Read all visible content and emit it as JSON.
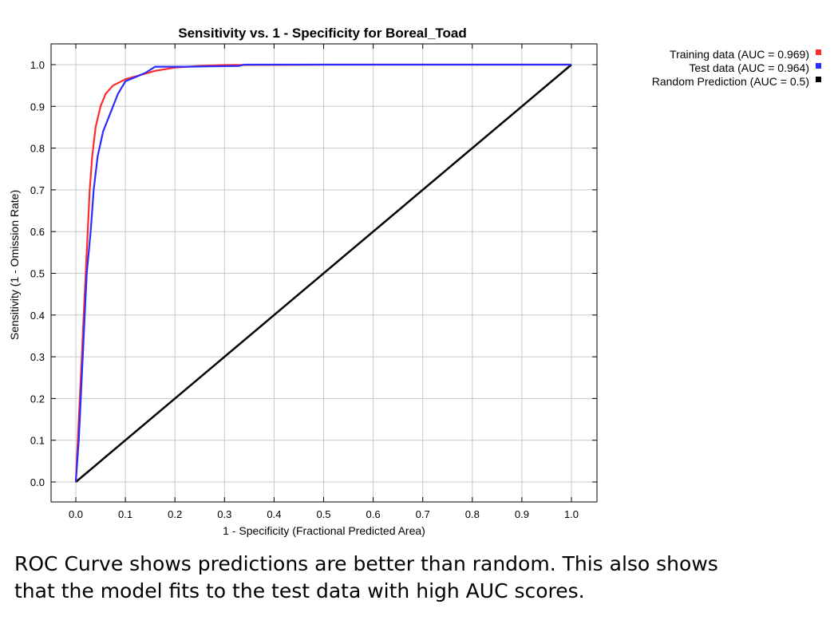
{
  "chart_data": {
    "type": "line",
    "title": "Sensitivity vs. 1 - Specificity for Boreal_Toad",
    "xlabel": "1 - Specificity  (Fractional Predicted Area)",
    "ylabel": "Sensitivity  (1 - Omission Rate)",
    "xlim": [
      0,
      1
    ],
    "ylim": [
      0,
      1
    ],
    "x_ticks": [
      "0.0",
      "0.1",
      "0.2",
      "0.3",
      "0.4",
      "0.5",
      "0.6",
      "0.7",
      "0.8",
      "0.9",
      "1.0"
    ],
    "y_ticks": [
      "0.0",
      "0.1",
      "0.2",
      "0.3",
      "0.4",
      "0.5",
      "0.6",
      "0.7",
      "0.8",
      "0.9",
      "1.0"
    ],
    "grid": true,
    "legend_position": "top-right, outside plot",
    "series": [
      {
        "name": "Training data (AUC = 0.969)",
        "color": "#ff2a2a",
        "points": [
          [
            0,
            0
          ],
          [
            0.004,
            0.1
          ],
          [
            0.008,
            0.2
          ],
          [
            0.012,
            0.3
          ],
          [
            0.016,
            0.4
          ],
          [
            0.02,
            0.5
          ],
          [
            0.024,
            0.6
          ],
          [
            0.028,
            0.7
          ],
          [
            0.033,
            0.78
          ],
          [
            0.04,
            0.85
          ],
          [
            0.05,
            0.9
          ],
          [
            0.06,
            0.93
          ],
          [
            0.075,
            0.95
          ],
          [
            0.1,
            0.965
          ],
          [
            0.13,
            0.975
          ],
          [
            0.16,
            0.985
          ],
          [
            0.2,
            0.993
          ],
          [
            0.25,
            0.997
          ],
          [
            0.3,
            0.999
          ],
          [
            0.5,
            1.0
          ],
          [
            1.0,
            1.0
          ]
        ]
      },
      {
        "name": "Test data (AUC = 0.964)",
        "color": "#2b2bff",
        "points": [
          [
            0,
            0
          ],
          [
            0.006,
            0.1
          ],
          [
            0.01,
            0.2
          ],
          [
            0.016,
            0.35
          ],
          [
            0.022,
            0.5
          ],
          [
            0.03,
            0.6
          ],
          [
            0.036,
            0.7
          ],
          [
            0.044,
            0.78
          ],
          [
            0.055,
            0.84
          ],
          [
            0.065,
            0.87
          ],
          [
            0.075,
            0.9
          ],
          [
            0.085,
            0.93
          ],
          [
            0.1,
            0.96
          ],
          [
            0.12,
            0.97
          ],
          [
            0.14,
            0.98
          ],
          [
            0.16,
            0.995
          ],
          [
            0.22,
            0.995
          ],
          [
            0.33,
            0.997
          ],
          [
            0.34,
            1.0
          ],
          [
            1.0,
            1.0
          ]
        ]
      },
      {
        "name": "Random Prediction (AUC = 0.5)",
        "color": "#000000",
        "points": [
          [
            0,
            0
          ],
          [
            1,
            1
          ]
        ]
      }
    ]
  },
  "caption": {
    "line1": "ROC Curve shows predictions are better than random.  This also shows",
    "line2": "that the model fits to the test data with high AUC scores."
  }
}
